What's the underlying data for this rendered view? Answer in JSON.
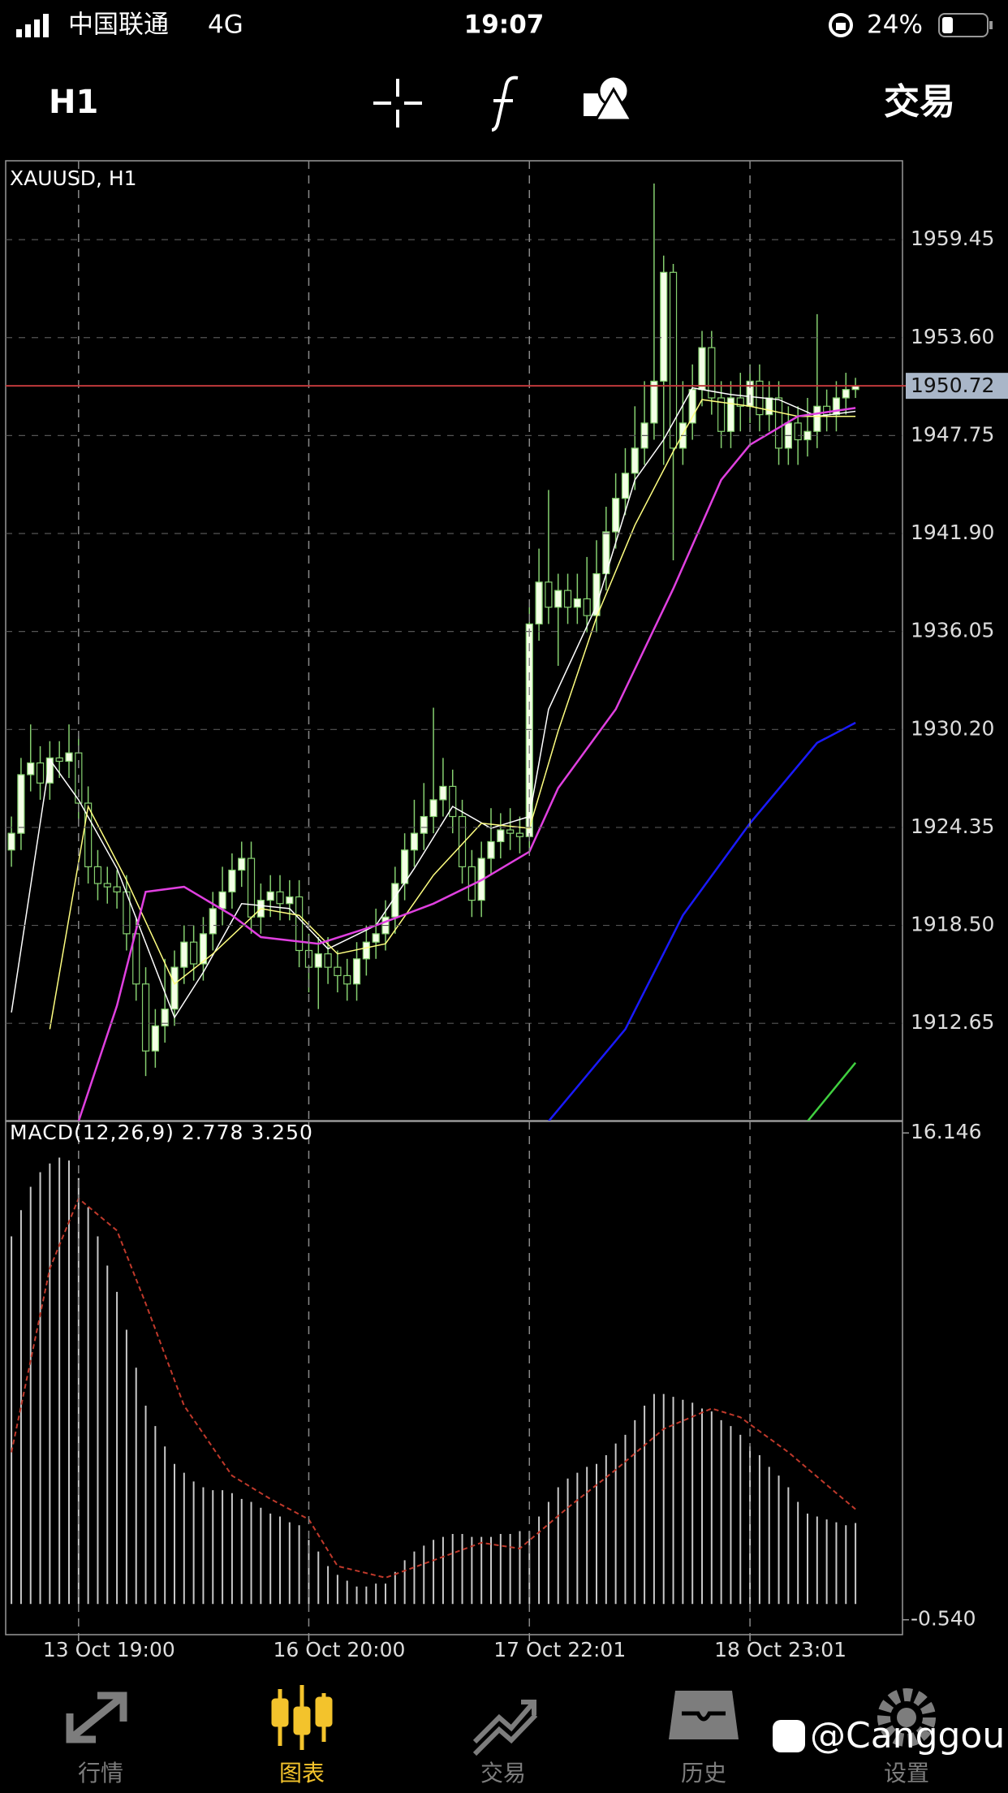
{
  "status_bar": {
    "carrier": "中国联通",
    "network": "4G",
    "time": "19:07",
    "battery": "24%"
  },
  "toolbar": {
    "timeframe": "H1",
    "trade": "交易"
  },
  "chart_data": [
    {
      "type": "candlestick",
      "title": "XAUUSD, H1",
      "open": [
        1923.0,
        1924.0,
        1927.5,
        1928.2,
        1927.0,
        1928.5,
        1928.3,
        1928.8,
        1925.8,
        1922.0,
        1921.0,
        1920.8,
        1920.5,
        1918.0,
        1915.0,
        1911.0,
        1912.5,
        1913.5,
        1916.0,
        1917.5,
        1916.2,
        1918.0,
        1919.5,
        1920.5,
        1921.8,
        1922.5,
        1919.0,
        1920.0,
        1920.5,
        1919.8,
        1920.2,
        1917.0,
        1916.0,
        1916.8,
        1916.0,
        1915.5,
        1915.0,
        1916.5,
        1917.5,
        1918.0,
        1919.0,
        1921.0,
        1923.0,
        1924.0,
        1925.0,
        1926.0,
        1926.8,
        1925.0,
        1922.0,
        1920.0,
        1922.5,
        1923.5,
        1924.2,
        1924.0,
        1923.8,
        1936.5,
        1939.0,
        1937.5,
        1938.5,
        1937.5,
        1938.0,
        1937.0,
        1939.5,
        1942.0,
        1944.0,
        1945.5,
        1947.0,
        1948.5,
        1951.0,
        1957.5,
        1947.0,
        1948.5,
        1950.5,
        1953.0,
        1950.0,
        1948.0,
        1950.0,
        1949.5,
        1951.0,
        1949.0,
        1950.0,
        1947.0,
        1948.5,
        1947.5,
        1948.0,
        1949.5,
        1949.0,
        1950.0,
        1950.5
      ],
      "high": [
        1925.0,
        1928.5,
        1930.5,
        1929.2,
        1929.5,
        1929.5,
        1930.5,
        1929.8,
        1926.8,
        1923.0,
        1922.0,
        1921.8,
        1921.5,
        1919.0,
        1916.0,
        1913.5,
        1916.5,
        1917.0,
        1918.5,
        1918.5,
        1919.0,
        1920.5,
        1922.0,
        1922.8,
        1923.5,
        1923.5,
        1921.0,
        1921.5,
        1921.5,
        1921.2,
        1921.2,
        1918.0,
        1917.8,
        1917.8,
        1917.0,
        1916.5,
        1917.5,
        1918.5,
        1919.5,
        1920.0,
        1922.0,
        1924.0,
        1926.0,
        1927.0,
        1931.5,
        1928.5,
        1927.8,
        1926.0,
        1923.0,
        1923.5,
        1925.5,
        1925.2,
        1925.5,
        1925.0,
        1937.5,
        1941.0,
        1944.5,
        1939.5,
        1939.5,
        1939.5,
        1940.5,
        1941.5,
        1943.5,
        1945.5,
        1947.0,
        1949.5,
        1951.0,
        1962.8,
        1958.5,
        1958.0,
        1951.0,
        1952.0,
        1954.0,
        1954.0,
        1951.0,
        1951.0,
        1951.5,
        1952.0,
        1952.0,
        1951.0,
        1951.0,
        1949.5,
        1949.5,
        1950.0,
        1955.0,
        1950.5,
        1951.0,
        1951.5,
        1951.2
      ],
      "low": [
        1922.0,
        1923.0,
        1926.5,
        1926.0,
        1926.0,
        1927.3,
        1927.3,
        1924.8,
        1921.0,
        1920.0,
        1919.8,
        1919.5,
        1917.0,
        1914.0,
        1909.5,
        1910.0,
        1911.5,
        1912.5,
        1915.0,
        1915.2,
        1915.2,
        1917.0,
        1918.5,
        1919.5,
        1920.8,
        1918.0,
        1918.0,
        1919.0,
        1918.8,
        1918.8,
        1916.0,
        1914.5,
        1913.5,
        1915.0,
        1914.5,
        1914.0,
        1914.0,
        1915.5,
        1916.5,
        1917.0,
        1918.0,
        1920.0,
        1922.0,
        1923.0,
        1924.0,
        1925.0,
        1924.0,
        1921.0,
        1919.0,
        1919.0,
        1921.5,
        1922.5,
        1923.0,
        1922.8,
        1923.0,
        1935.5,
        1936.5,
        1934.0,
        1936.5,
        1936.5,
        1936.0,
        1936.0,
        1938.5,
        1941.0,
        1943.0,
        1944.5,
        1946.0,
        1947.5,
        1946.0,
        1940.3,
        1946.0,
        1947.5,
        1949.5,
        1949.0,
        1947.0,
        1947.0,
        1948.0,
        1948.5,
        1948.0,
        1948.0,
        1946.0,
        1946.0,
        1946.0,
        1946.5,
        1947.0,
        1948.0,
        1948.0,
        1949.0,
        1950.0
      ],
      "close": [
        1924.0,
        1927.5,
        1928.2,
        1927.0,
        1928.5,
        1928.3,
        1928.8,
        1925.8,
        1922.0,
        1921.0,
        1920.8,
        1920.5,
        1918.0,
        1915.0,
        1911.0,
        1912.5,
        1913.5,
        1916.0,
        1917.5,
        1916.2,
        1918.0,
        1919.5,
        1920.5,
        1921.8,
        1922.5,
        1919.0,
        1920.0,
        1920.5,
        1919.8,
        1920.2,
        1917.0,
        1916.0,
        1916.8,
        1916.0,
        1915.5,
        1915.0,
        1916.5,
        1917.5,
        1918.0,
        1919.0,
        1921.0,
        1923.0,
        1924.0,
        1925.0,
        1926.0,
        1926.8,
        1925.0,
        1922.0,
        1920.0,
        1922.5,
        1923.5,
        1924.2,
        1924.0,
        1923.8,
        1936.5,
        1939.0,
        1937.5,
        1938.5,
        1937.5,
        1938.0,
        1937.0,
        1939.5,
        1942.0,
        1944.0,
        1945.5,
        1947.0,
        1948.5,
        1951.0,
        1957.5,
        1947.0,
        1948.5,
        1950.5,
        1953.0,
        1950.0,
        1948.0,
        1950.0,
        1949.5,
        1951.0,
        1949.0,
        1950.0,
        1947.0,
        1948.5,
        1947.5,
        1948.0,
        1949.5,
        1949.0,
        1950.0,
        1950.5,
        1950.72
      ],
      "up_color": "#f4ffe6",
      "down_color": "#000000",
      "wick_color": "#86d070",
      "xlim": [
        -0.6,
        92.9
      ],
      "ylim": [
        1906.84,
        1964.16
      ],
      "xticks": [
        {
          "value": 7,
          "label": "13 Oct 19:00"
        },
        {
          "value": 31,
          "label": "16 Oct 20:00"
        },
        {
          "value": 54,
          "label": "17 Oct 22:01"
        },
        {
          "value": 77,
          "label": "18 Oct 23:01"
        }
      ],
      "yticks": [
        1959.45,
        {
          "value": 1953.6,
          "label": "1953.60"
        },
        1947.75,
        {
          "value": 1941.9,
          "label": "1941.90"
        },
        1936.05,
        {
          "value": 1930.2,
          "label": "1930.20"
        },
        1924.35,
        {
          "value": 1918.5,
          "label": "1918.50"
        },
        1912.65
      ],
      "grid": true,
      "last_price": 1950.72,
      "last_price_color": "#c0393b",
      "lines": [
        {
          "color": "#ffffff",
          "x": [
            0,
            4,
            7,
            11,
            17,
            20,
            24,
            29,
            33,
            38,
            42,
            46,
            50,
            54,
            56,
            61,
            65,
            68,
            71,
            75,
            80,
            84,
            88
          ],
          "values": [
            1913.3,
            1928.4,
            1926,
            1921.9,
            1913,
            1915.7,
            1919.8,
            1919.5,
            1917.1,
            1918.5,
            1921.9,
            1925.6,
            1924.3,
            1925,
            1931.4,
            1937.6,
            1945.1,
            1947.5,
            1950.6,
            1950.2,
            1949.9,
            1948.9,
            1949.2
          ]
        },
        {
          "color": "#ffff80",
          "x": [
            4,
            8,
            12,
            17,
            21,
            26,
            30,
            34,
            39,
            44,
            49,
            54,
            57,
            61,
            65,
            69,
            72,
            77,
            82,
            88
          ],
          "values": [
            1912.3,
            1925.6,
            1921.2,
            1915,
            1916.8,
            1919.5,
            1919.1,
            1916.8,
            1917.4,
            1921.5,
            1924.6,
            1924.3,
            1930.1,
            1936.9,
            1942.4,
            1946.8,
            1949.9,
            1949.5,
            1948.9,
            1948.9
          ]
        },
        {
          "color": "#e040e0",
          "x": [
            7,
            11,
            14,
            18,
            23,
            26,
            32,
            38,
            44,
            49,
            54,
            57,
            63,
            69,
            74,
            77,
            82,
            88
          ],
          "values": [
            1906.8,
            1913.7,
            1920.5,
            1920.8,
            1919.1,
            1917.8,
            1917.4,
            1918.5,
            1919.8,
            1921.2,
            1922.9,
            1926.7,
            1931.4,
            1938.6,
            1945.1,
            1947.2,
            1948.9,
            1949.4
          ]
        },
        {
          "color": "#1a1aff",
          "x": [
            56,
            64,
            70,
            77,
            84,
            88
          ],
          "values": [
            1906.8,
            1912.3,
            1919.1,
            1924.6,
            1929.4,
            1930.6
          ]
        },
        {
          "color": "#40d040",
          "x": [
            83,
            88
          ],
          "values": [
            1906.8,
            1910.3
          ]
        }
      ]
    },
    {
      "type": "macd",
      "title": "MACD(12,26,9) 2.778 3.250",
      "histogram": {
        "color": "#c8c8c8",
        "values": [
          12.6,
          13.5,
          14.3,
          14.8,
          15.1,
          15.3,
          15.2,
          14.6,
          13.6,
          12.6,
          11.6,
          10.7,
          9.4,
          8.1,
          6.8,
          6.1,
          5.4,
          4.8,
          4.5,
          4.2,
          4.0,
          3.9,
          3.9,
          3.8,
          3.6,
          3.5,
          3.3,
          3.1,
          3.0,
          2.8,
          2.7,
          2.2,
          1.8,
          1.3,
          1.0,
          0.8,
          0.6,
          0.6,
          0.7,
          0.7,
          1.1,
          1.5,
          1.8,
          2.0,
          2.2,
          2.3,
          2.4,
          2.4,
          2.3,
          2.3,
          2.3,
          2.4,
          2.4,
          2.5,
          2.5,
          3.0,
          3.5,
          4.0,
          4.3,
          4.5,
          4.7,
          4.8,
          5.1,
          5.5,
          5.8,
          6.3,
          6.8,
          7.2,
          7.2,
          7.1,
          7.0,
          6.9,
          6.7,
          6.6,
          6.3,
          6.1,
          5.8,
          5.4,
          5.1,
          4.7,
          4.4,
          4.0,
          3.5,
          3.1,
          3.0,
          2.9,
          2.8,
          2.7,
          2.778
        ]
      },
      "signal": {
        "color": "#c0392b",
        "x": [
          0,
          4,
          7,
          11,
          14,
          18,
          23,
          27,
          31,
          34,
          39,
          44,
          49,
          53,
          58,
          63,
          68,
          73,
          76,
          81,
          86,
          88
        ],
        "values": [
          5.2,
          11.5,
          13.9,
          12.8,
          10.3,
          6.8,
          4.4,
          3.6,
          2.9,
          1.3,
          0.9,
          1.5,
          2.1,
          1.9,
          3.3,
          4.6,
          6.0,
          6.7,
          6.4,
          5.2,
          3.8,
          3.25
        ]
      },
      "ylim": [
        -1.05,
        16.54
      ],
      "yticks": [
        16.146,
        {
          "value": -0.54,
          "label": "-0.540"
        }
      ]
    }
  ],
  "tab_bar": {
    "tabs": [
      "行情",
      "图表",
      "交易",
      "历史",
      "设置"
    ],
    "active": 1,
    "color": "#7d7d7d",
    "active_color": "#f3c32c"
  },
  "watermark": "@Canggou"
}
